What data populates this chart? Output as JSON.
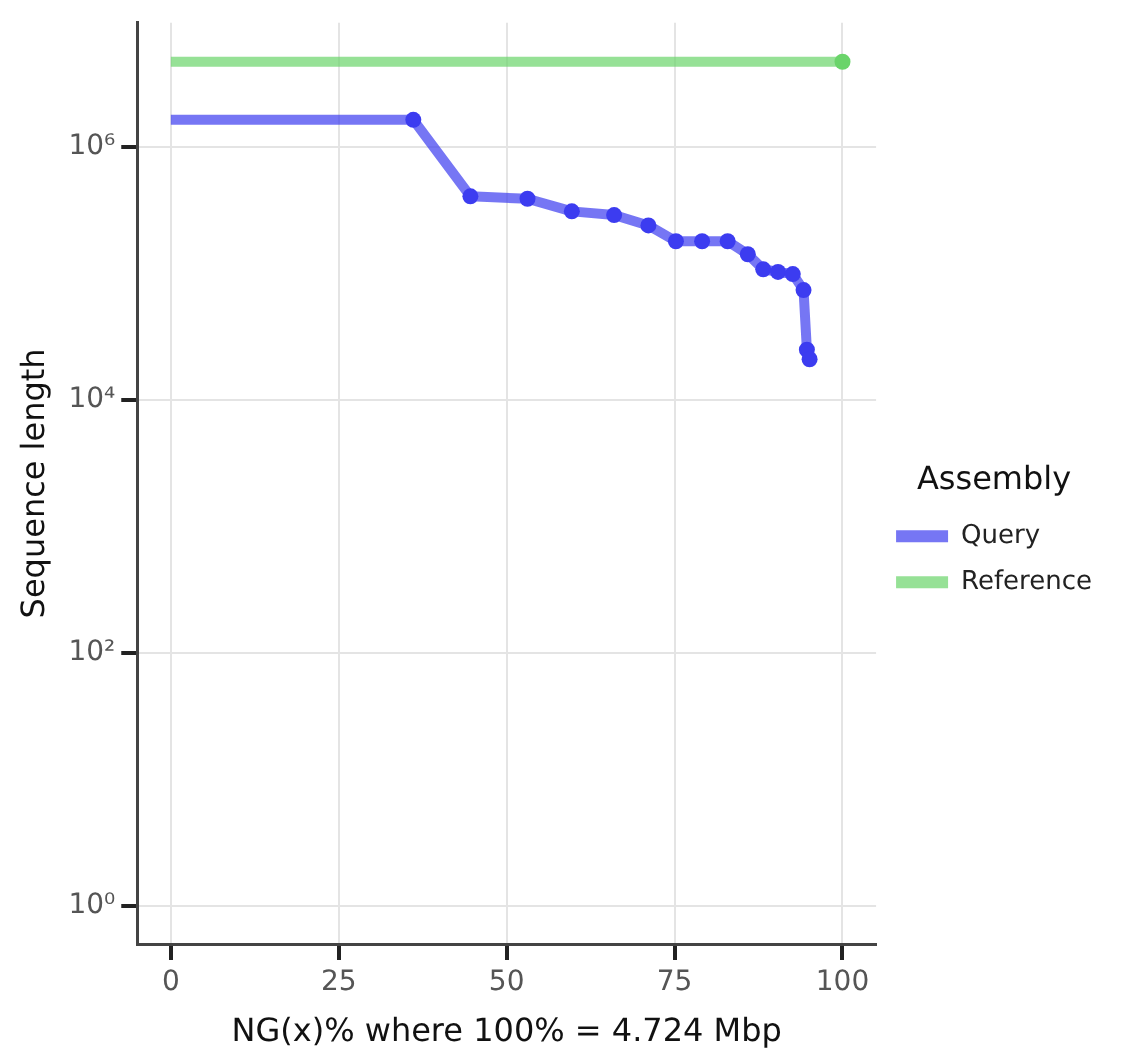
{
  "chart_data": {
    "type": "line",
    "xlabel": "NG(x)% where 100% = 4.724 Mbp",
    "ylabel": "Sequence length",
    "legend_title": "Assembly",
    "xlim": [
      -5,
      105
    ],
    "xticks": [
      0,
      25,
      50,
      75,
      100
    ],
    "ylim": [
      0.5,
      9600000
    ],
    "yticks": [
      {
        "value": 1,
        "label": "10⁰"
      },
      {
        "value": 100,
        "label": "10²"
      },
      {
        "value": 10000,
        "label": "10⁴"
      },
      {
        "value": 1000000,
        "label": "10⁶"
      }
    ],
    "log": "y",
    "grid": true,
    "legend": "right",
    "marker": "circle",
    "series": [
      {
        "name": "Query",
        "color": "#3c3cf0",
        "x": [
          0,
          36.1,
          44.6,
          53.1,
          59.7,
          66.0,
          71.1,
          75.2,
          79.1,
          82.9,
          85.9,
          88.2,
          90.4,
          92.6,
          94.2,
          94.7,
          95.1
        ],
        "values": [
          1640000,
          1640000,
          408000,
          390000,
          310000,
          290000,
          240000,
          180000,
          180000,
          180000,
          142000,
          108000,
          103000,
          99000,
          74000,
          25000,
          21000
        ]
      },
      {
        "name": "Reference",
        "color": "#6ad46a",
        "x": [
          0,
          100
        ],
        "values": [
          4724000,
          4724000
        ]
      }
    ]
  }
}
